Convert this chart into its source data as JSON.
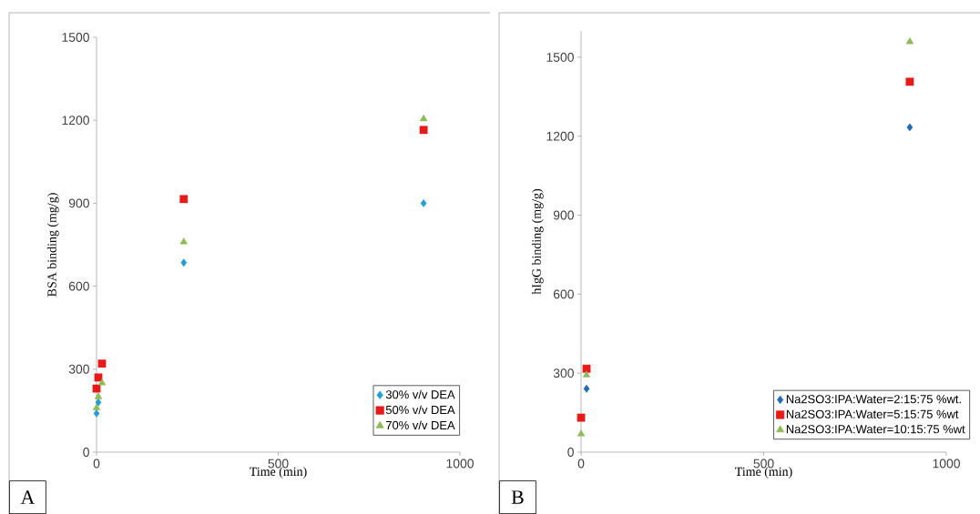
{
  "chart_data": [
    {
      "type": "scatter",
      "xlabel": "Time (min)",
      "ylabel": "BSA binding (mg/g)",
      "xlim": [
        0,
        1000
      ],
      "xticks": [
        0,
        500,
        1000
      ],
      "ylim": [
        0,
        1500
      ],
      "yticks": [
        0,
        300,
        600,
        900,
        1200,
        1500
      ],
      "grid": false,
      "legend": "bottom right",
      "annotations": [
        "A"
      ],
      "series": [
        {
          "name": "30% v/v DEA",
          "color": "#1f9fd6",
          "marker": "diamond",
          "x": [
            0,
            5,
            240,
            900
          ],
          "values": [
            140,
            180,
            685,
            900
          ]
        },
        {
          "name": "50% v/v DEA",
          "color": "#e81919",
          "marker": "square",
          "x": [
            0,
            5,
            15,
            240,
            900
          ],
          "values": [
            230,
            270,
            320,
            915,
            1165
          ]
        },
        {
          "name": "70% v/v DEA",
          "color": "#8dbb56",
          "marker": "triangle",
          "x": [
            0,
            5,
            15,
            240,
            900
          ],
          "values": [
            160,
            200,
            250,
            760,
            1205
          ]
        }
      ]
    },
    {
      "type": "scatter",
      "xlabel": "Time (min)",
      "ylabel": "hIgG binding (mg/g)",
      "xlim": [
        0,
        1000
      ],
      "xticks": [
        0,
        500,
        1000
      ],
      "ylim": [
        0,
        1600
      ],
      "yticks": [
        0,
        300,
        600,
        900,
        1200,
        1500
      ],
      "grid": false,
      "legend": "bottom right",
      "annotations": [
        "B"
      ],
      "series": [
        {
          "name": "Na2SO3:IPA:Water=2:15:75 %wt.",
          "color": "#1f6bb0",
          "marker": "diamond",
          "x": [
            15,
            900
          ],
          "values": [
            241,
            1234
          ]
        },
        {
          "name": "Na2SO3:IPA:Water=5:15:75 %wt",
          "color": "#e81919",
          "marker": "square",
          "x": [
            0,
            15,
            900
          ],
          "values": [
            131,
            317,
            1407
          ]
        },
        {
          "name": "Na2SO3:IPA:Water=10:15:75 %wt",
          "color": "#8dbb56",
          "marker": "triangle",
          "x": [
            0,
            15,
            900
          ],
          "values": [
            69,
            293,
            1559
          ]
        }
      ]
    }
  ]
}
